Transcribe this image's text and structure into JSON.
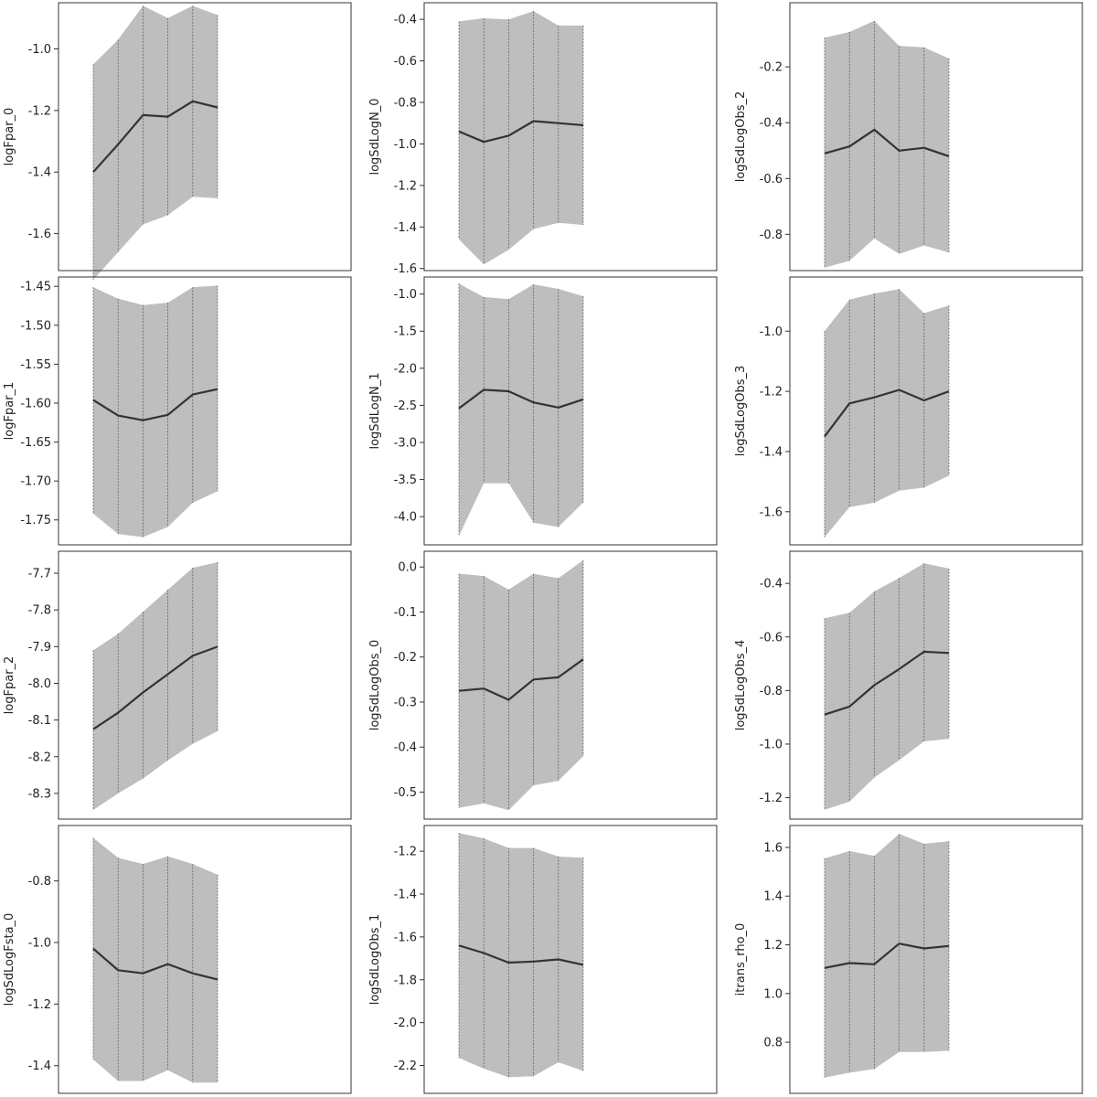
{
  "chart_data": [
    {
      "type": "line",
      "ylabel": "logFpar_0",
      "ylim": [
        -1.72,
        -0.85
      ],
      "yticks": [
        "-1.0",
        "-1.2",
        "-1.4",
        "-1.6"
      ],
      "x": [
        1,
        2,
        3,
        4,
        5,
        6
      ],
      "median": [
        -1.4,
        -1.31,
        -1.215,
        -1.22,
        -1.17,
        -1.19
      ],
      "lower": [
        -1.75,
        -1.66,
        -1.57,
        -1.54,
        -1.48,
        -1.485
      ],
      "upper": [
        -1.05,
        -0.97,
        -0.86,
        -0.9,
        -0.86,
        -0.89
      ]
    },
    {
      "type": "line",
      "ylabel": "logSdLogN_0",
      "ylim": [
        -1.61,
        -0.32
      ],
      "yticks": [
        "-0.4",
        "-0.6",
        "-0.8",
        "-1.0",
        "-1.2",
        "-1.4",
        "-1.6"
      ],
      "x": [
        1,
        2,
        3,
        4,
        5,
        6
      ],
      "median": [
        -0.94,
        -0.99,
        -0.96,
        -0.89,
        -0.9,
        -0.91
      ],
      "lower": [
        -1.46,
        -1.58,
        -1.51,
        -1.41,
        -1.38,
        -1.39
      ],
      "upper": [
        -0.41,
        -0.395,
        -0.4,
        -0.36,
        -0.43,
        -0.43
      ]
    },
    {
      "type": "line",
      "ylabel": "logSdLogObs_2",
      "ylim": [
        -0.93,
        0.03
      ],
      "yticks": [
        "-0.2",
        "-0.4",
        "-0.6",
        "-0.8"
      ],
      "x": [
        1,
        2,
        3,
        4,
        5,
        6
      ],
      "median": [
        -0.51,
        -0.485,
        -0.425,
        -0.5,
        -0.49,
        -0.52
      ],
      "lower": [
        -0.92,
        -0.895,
        -0.815,
        -0.87,
        -0.84,
        -0.865
      ],
      "upper": [
        -0.095,
        -0.075,
        -0.035,
        -0.125,
        -0.13,
        -0.17
      ]
    },
    {
      "type": "line",
      "ylabel": "logFpar_1",
      "ylim": [
        -1.782,
        -1.438
      ],
      "yticks": [
        "-1.45",
        "-1.50",
        "-1.55",
        "-1.60",
        "-1.65",
        "-1.70",
        "-1.75"
      ],
      "x": [
        1,
        2,
        3,
        4,
        5,
        6
      ],
      "median": [
        -1.596,
        -1.616,
        -1.622,
        -1.615,
        -1.589,
        -1.582
      ],
      "lower": [
        -1.742,
        -1.768,
        -1.772,
        -1.759,
        -1.728,
        -1.713
      ],
      "upper": [
        -1.451,
        -1.466,
        -1.474,
        -1.471,
        -1.451,
        -1.449
      ]
    },
    {
      "type": "line",
      "ylabel": "logSdLogN_1",
      "ylim": [
        -4.38,
        -0.77
      ],
      "yticks": [
        "-1.0",
        "-1.5",
        "-2.0",
        "-2.5",
        "-3.0",
        "-3.5",
        "-4.0"
      ],
      "x": [
        1,
        2,
        3,
        4,
        5,
        6
      ],
      "median": [
        -2.54,
        -2.29,
        -2.31,
        -2.46,
        -2.53,
        -2.42
      ],
      "lower": [
        -4.26,
        -3.55,
        -3.55,
        -4.08,
        -4.14,
        -3.81
      ],
      "upper": [
        -0.86,
        -1.04,
        -1.07,
        -0.87,
        -0.93,
        -1.03
      ]
    },
    {
      "type": "line",
      "ylabel": "logSdLogObs_3",
      "ylim": [
        -1.71,
        -0.82
      ],
      "yticks": [
        "-1.0",
        "-1.2",
        "-1.4",
        "-1.6"
      ],
      "x": [
        1,
        2,
        3,
        4,
        5,
        6
      ],
      "median": [
        -1.35,
        -1.24,
        -1.22,
        -1.195,
        -1.23,
        -1.2
      ],
      "lower": [
        -1.685,
        -1.585,
        -1.57,
        -1.53,
        -1.52,
        -1.48
      ],
      "upper": [
        -1.0,
        -0.895,
        -0.875,
        -0.86,
        -0.94,
        -0.915
      ]
    },
    {
      "type": "line",
      "ylabel": "logFpar_2",
      "ylim": [
        -8.37,
        -7.64
      ],
      "yticks": [
        "-7.7",
        "-7.8",
        "-7.9",
        "-8.0",
        "-8.1",
        "-8.2",
        "-8.3"
      ],
      "x": [
        1,
        2,
        3,
        4,
        5,
        6
      ],
      "median": [
        -8.125,
        -8.08,
        -8.025,
        -7.975,
        -7.925,
        -7.9
      ],
      "lower": [
        -8.345,
        -8.3,
        -8.26,
        -8.21,
        -8.165,
        -8.13
      ],
      "upper": [
        -7.91,
        -7.865,
        -7.805,
        -7.745,
        -7.685,
        -7.67
      ]
    },
    {
      "type": "line",
      "ylabel": "logSdLogObs_0",
      "ylim": [
        -0.56,
        0.035
      ],
      "yticks": [
        "0.0",
        "-0.1",
        "-0.2",
        "-0.3",
        "-0.4",
        "-0.5"
      ],
      "x": [
        1,
        2,
        3,
        4,
        5,
        6
      ],
      "median": [
        -0.275,
        -0.27,
        -0.295,
        -0.25,
        -0.245,
        -0.205
      ],
      "lower": [
        -0.535,
        -0.525,
        -0.54,
        -0.485,
        -0.475,
        -0.42
      ],
      "upper": [
        -0.015,
        -0.02,
        -0.05,
        -0.015,
        -0.025,
        0.015
      ]
    },
    {
      "type": "line",
      "ylabel": "logSdLogObs_4",
      "ylim": [
        -1.28,
        -0.28
      ],
      "yticks": [
        "-0.4",
        "-0.6",
        "-0.8",
        "-1.0",
        "-1.2"
      ],
      "x": [
        1,
        2,
        3,
        4,
        5,
        6
      ],
      "median": [
        -0.89,
        -0.86,
        -0.78,
        -0.72,
        -0.655,
        -0.66
      ],
      "lower": [
        -1.245,
        -1.215,
        -1.125,
        -1.06,
        -0.99,
        -0.98
      ],
      "upper": [
        -0.53,
        -0.51,
        -0.43,
        -0.38,
        -0.325,
        -0.345
      ]
    },
    {
      "type": "line",
      "ylabel": "logSdLogFsta_0",
      "ylim": [
        -1.49,
        -0.62
      ],
      "yticks": [
        "-0.8",
        "-1.0",
        "-1.2",
        "-1.4"
      ],
      "x": [
        1,
        2,
        3,
        4,
        5,
        6
      ],
      "median": [
        -1.02,
        -1.09,
        -1.1,
        -1.07,
        -1.1,
        -1.12
      ],
      "lower": [
        -1.38,
        -1.45,
        -1.45,
        -1.415,
        -1.455,
        -1.455
      ],
      "upper": [
        -0.66,
        -0.725,
        -0.745,
        -0.72,
        -0.745,
        -0.78
      ]
    },
    {
      "type": "line",
      "ylabel": "logSdLogObs_1",
      "ylim": [
        -2.33,
        -1.08
      ],
      "yticks": [
        "-1.2",
        "-1.4",
        "-1.6",
        "-1.8",
        "-2.0",
        "-2.2"
      ],
      "x": [
        1,
        2,
        3,
        4,
        5,
        6
      ],
      "median": [
        -1.64,
        -1.675,
        -1.72,
        -1.715,
        -1.705,
        -1.73
      ],
      "lower": [
        -2.165,
        -2.215,
        -2.255,
        -2.25,
        -2.185,
        -2.225
      ],
      "upper": [
        -1.115,
        -1.14,
        -1.185,
        -1.185,
        -1.225,
        -1.23
      ]
    },
    {
      "type": "line",
      "ylabel": "itrans_rho_0",
      "ylim": [
        0.59,
        1.69
      ],
      "yticks": [
        "1.6",
        "1.4",
        "1.2",
        "1.0",
        "0.8"
      ],
      "x": [
        1,
        2,
        3,
        4,
        5,
        6
      ],
      "median": [
        1.105,
        1.125,
        1.12,
        1.205,
        1.185,
        1.195
      ],
      "lower": [
        0.655,
        0.675,
        0.69,
        0.76,
        0.76,
        0.765
      ],
      "upper": [
        1.555,
        1.585,
        1.565,
        1.655,
        1.615,
        1.625
      ]
    }
  ],
  "colors": {
    "band": "#bebebe",
    "median": "#333333",
    "frame": "#333333"
  }
}
